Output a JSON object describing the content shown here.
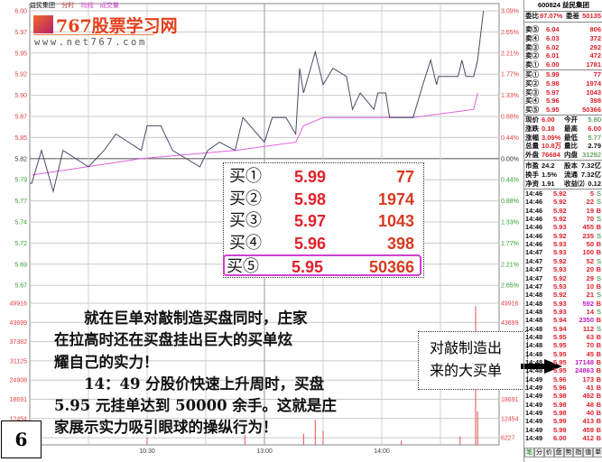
{
  "chart_header": {
    "stock": "益民集团",
    "view": "分时",
    "avg_label": "均线",
    "vol_label": "成交量"
  },
  "logo": {
    "brand": "767股票学习网",
    "url": "www.net767.com"
  },
  "colors": {
    "price_line": "#4a4a6a",
    "avg_line": "#e060e0",
    "grid": "#c0c0c0",
    "up": "#e0202a",
    "down": "#208020",
    "highlight": "#d040d0"
  },
  "chart_data": {
    "type": "line",
    "price_ticks": [
      "6.00",
      "5.97",
      "5.95",
      "5.92",
      "5.90",
      "5.87",
      "5.85",
      "5.82",
      "5.79",
      "5.77",
      "5.74",
      "5.72",
      "5.69",
      "5.67"
    ],
    "pct_ticks": [
      "3.09%",
      "2.65%",
      "2.21%",
      "1.77%",
      "1.33%",
      "0.88%",
      "0.44%",
      "0.00%",
      "0.44%",
      "0.88%",
      "1.33%",
      "1.77%",
      "2.21%",
      "2.65%"
    ],
    "volume_ticks": [
      "49916",
      "43699",
      "37382",
      "31125",
      "24908",
      "18691",
      "12454",
      "6227"
    ],
    "time_ticks": [
      "10:30",
      "13:00",
      "14:00"
    ],
    "prev_close": 5.82,
    "ylim": [
      5.65,
      6.0
    ],
    "price_series": [
      [
        "9:30",
        5.79
      ],
      [
        "9:31",
        5.79
      ],
      [
        "9:36",
        5.83
      ],
      [
        "9:42",
        5.78
      ],
      [
        "9:47",
        5.83
      ],
      [
        "10:00",
        5.81
      ],
      [
        "10:08",
        5.83
      ],
      [
        "10:14",
        5.85
      ],
      [
        "10:27",
        5.83
      ],
      [
        "10:30",
        5.86
      ],
      [
        "10:37",
        5.86
      ],
      [
        "10:43",
        5.83
      ],
      [
        "10:57",
        5.81
      ],
      [
        "11:01",
        5.83
      ],
      [
        "11:07",
        5.84
      ],
      [
        "11:15",
        5.83
      ],
      [
        "11:19",
        5.87
      ],
      [
        "11:30",
        5.84
      ],
      [
        "13:04",
        5.87
      ],
      [
        "13:11",
        5.87
      ],
      [
        "13:16",
        5.85
      ],
      [
        "13:18",
        5.93
      ],
      [
        "13:20",
        5.9
      ],
      [
        "13:26",
        5.95
      ],
      [
        "13:30",
        5.91
      ],
      [
        "13:35",
        5.93
      ],
      [
        "13:42",
        5.92
      ],
      [
        "13:45",
        5.88
      ],
      [
        "13:49",
        5.9
      ],
      [
        "13:56",
        5.88
      ],
      [
        "13:58",
        5.9
      ],
      [
        "14:02",
        5.9
      ],
      [
        "14:04",
        5.87
      ],
      [
        "14:16",
        5.87
      ],
      [
        "14:21",
        5.91
      ],
      [
        "14:25",
        5.94
      ],
      [
        "14:28",
        5.91
      ],
      [
        "14:29",
        5.92
      ],
      [
        "14:39",
        5.92
      ],
      [
        "14:41",
        5.94
      ],
      [
        "14:43",
        5.92
      ],
      [
        "14:47",
        5.92
      ],
      [
        "14:49",
        5.94
      ],
      [
        "14:51",
        5.98
      ],
      [
        "14:52",
        6.0
      ]
    ],
    "avg_series": [
      [
        "9:31",
        5.8
      ],
      [
        "10:27",
        5.82
      ],
      [
        "11:15",
        5.83
      ],
      [
        "13:16",
        5.84
      ],
      [
        "13:20",
        5.86
      ],
      [
        "13:30",
        5.87
      ],
      [
        "14:16",
        5.87
      ],
      [
        "14:47",
        5.88
      ],
      [
        "14:49",
        5.9
      ]
    ],
    "volume_series": [
      [
        "10:30",
        2500
      ],
      [
        "11:20",
        3500
      ],
      [
        "13:20",
        4000
      ],
      [
        "13:26",
        9000
      ],
      [
        "13:30",
        5000
      ],
      [
        "14:10",
        1500
      ],
      [
        "14:40",
        3000
      ],
      [
        "14:48",
        49916
      ],
      [
        "14:49",
        12000
      ]
    ]
  },
  "bid_overlay": [
    {
      "label": "买①",
      "price": "5.99",
      "volume": "77"
    },
    {
      "label": "买②",
      "price": "5.98",
      "volume": "1974"
    },
    {
      "label": "买③",
      "price": "5.97",
      "volume": "1043"
    },
    {
      "label": "买④",
      "price": "5.96",
      "volume": "398"
    },
    {
      "label": "买⑤",
      "price": "5.95",
      "volume": "50366"
    }
  ],
  "note_lines": [
    "　　就在巨单对敲制造买盘同时，庄家",
    "在拉高时还在买盘挂出巨大的买单炫",
    "耀自己的实力！",
    "　　14：49 分股价快速上升周时，买盘",
    "5.95 元挂单达到 50000 余手。这就是庄",
    "家展示实力吸引眼球的操纵行为！"
  ],
  "figure_number": "6",
  "callout": [
    "对敲制造出",
    "来的大买单"
  ],
  "panel": {
    "title": "600824 益民集团",
    "weibi_label": "委比",
    "weibi": "97.07%",
    "weicha_label": "委差",
    "weicha": "50135",
    "asks": [
      {
        "l": "卖⑤",
        "p": "6.04",
        "v": "806"
      },
      {
        "l": "卖④",
        "p": "6.03",
        "v": "372"
      },
      {
        "l": "卖③",
        "p": "6.02",
        "v": "292"
      },
      {
        "l": "卖②",
        "p": "6.01",
        "v": "472"
      },
      {
        "l": "卖①",
        "p": "6.00",
        "v": "1781"
      }
    ],
    "bids": [
      {
        "l": "买①",
        "p": "5.99",
        "v": "77"
      },
      {
        "l": "买②",
        "p": "5.98",
        "v": "1974"
      },
      {
        "l": "买③",
        "p": "5.97",
        "v": "1043"
      },
      {
        "l": "买④",
        "p": "5.96",
        "v": "398"
      },
      {
        "l": "买⑤",
        "p": "5.95",
        "v": "50366"
      }
    ],
    "stats": [
      {
        "a": "现价",
        "av": "6.00",
        "b": "今开",
        "bv": "5.80"
      },
      {
        "a": "涨跌",
        "av": "0.18",
        "b": "最高",
        "bv": "6.00"
      },
      {
        "a": "涨幅",
        "av": "3.09%",
        "b": "最低",
        "bv": "5.77"
      },
      {
        "a": "总量",
        "av": "10.8万",
        "b": "量比",
        "bv": "2.79"
      },
      {
        "a": "外盘",
        "av": "76684",
        "b": "内盘",
        "bv": "31292"
      },
      {
        "a": "市盈",
        "av": "24.2",
        "b": "股本",
        "bv": "7.32亿"
      },
      {
        "a": "换手",
        "av": "1.5%",
        "b": "流通",
        "bv": "7.32亿"
      },
      {
        "a": "净资",
        "av": "1.91",
        "b": "收益⑵",
        "bv": "0.12"
      }
    ],
    "ticks": [
      [
        "14:46",
        "5.92",
        "5",
        "S"
      ],
      [
        "14:46",
        "5.92",
        "22",
        "S"
      ],
      [
        "14:46",
        "5.92",
        "19",
        "B"
      ],
      [
        "14:46",
        "5.92",
        "70",
        "S"
      ],
      [
        "14:46",
        "5.93",
        "455",
        "B"
      ],
      [
        "14:46",
        "5.92",
        "235",
        "S"
      ],
      [
        "14:46",
        "5.93",
        "50",
        "B"
      ],
      [
        "14:47",
        "5.93",
        "100",
        "B"
      ],
      [
        "14:47",
        "5.92",
        "52",
        "S"
      ],
      [
        "14:47",
        "5.93",
        "20",
        "B"
      ],
      [
        "14:47",
        "5.92",
        "29",
        "S"
      ],
      [
        "14:47",
        "5.93",
        "10",
        "B"
      ],
      [
        "14:48",
        "5.92",
        "21",
        "S"
      ],
      [
        "14:48",
        "5.93",
        "592",
        "B"
      ],
      [
        "14:48",
        "5.93",
        "14",
        "S"
      ],
      [
        "14:48",
        "5.94",
        "2350",
        "B"
      ],
      [
        "14:48",
        "5.94",
        "112",
        "S"
      ],
      [
        "14:48",
        "5.95",
        "63",
        "B"
      ],
      [
        "14:48",
        "5.95",
        "70",
        "B"
      ],
      [
        "14:48",
        "5.95",
        "45",
        "B"
      ],
      [
        "14:48",
        "5.95",
        "17148",
        "B"
      ],
      [
        "14:48",
        "5.95",
        "24863",
        "B"
      ],
      [
        "14:49",
        "5.96",
        "173",
        "B"
      ],
      [
        "14:49",
        "5.96",
        "41",
        "B"
      ],
      [
        "14:49",
        "5.98",
        "492",
        "B"
      ],
      [
        "14:49",
        "5.98",
        "48",
        "B"
      ],
      [
        "14:49",
        "5.98",
        "40",
        "B"
      ],
      [
        "14:49",
        "5.99",
        "413",
        "B"
      ],
      [
        "14:49",
        "5.99",
        "459",
        "B"
      ],
      [
        "14:49",
        "6.00",
        "412",
        "B"
      ]
    ],
    "tabs": [
      "笔",
      "分",
      "价",
      "盘",
      "势",
      "指",
      "值",
      "单"
    ]
  }
}
